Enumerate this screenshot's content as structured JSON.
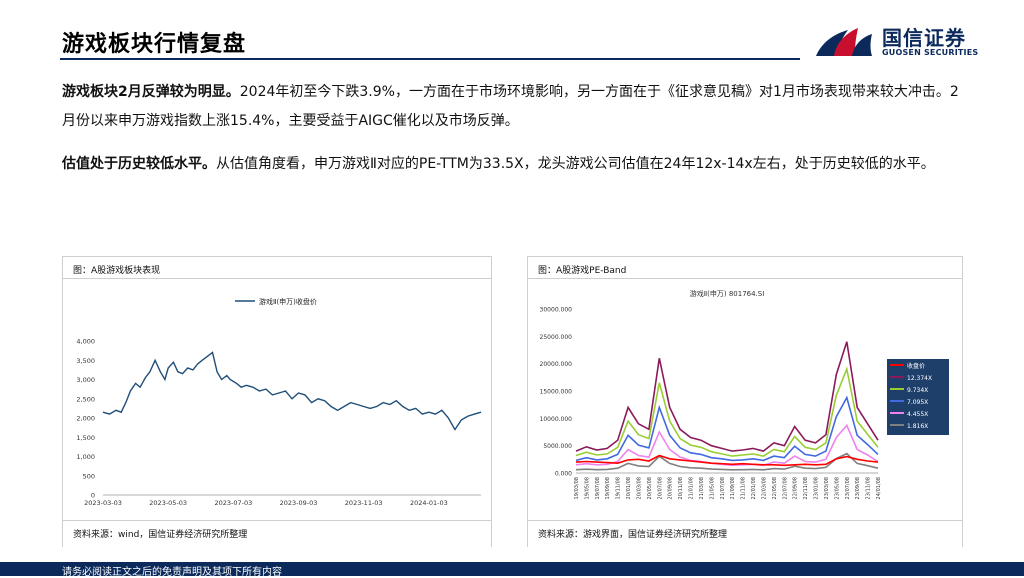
{
  "header": {
    "title": "游戏板块行情复盘",
    "logo_cn": "国信证券",
    "logo_en": "GUOSEN SECURITIES"
  },
  "paragraphs": [
    {
      "lead": "游戏板块2月反弹较为明显。",
      "body": "2024年初至今下跌3.9%，一方面在于市场环境影响，另一方面在于《征求意见稿》对1月市场表现带来较大冲击。2月份以来申万游戏指数上涨15.4%，主要受益于AIGC催化以及市场反弹。"
    },
    {
      "lead": "估值处于历史较低水平。",
      "body": "从估值角度看，申万游戏Ⅱ对应的PE-TTM为33.5X，龙头游戏公司估值在24年12x-14x左右，处于历史较低的水平。"
    }
  ],
  "left_panel": {
    "caption": "图：A股游戏板块表现",
    "source": "资料来源：wind，国信证券经济研究所整理"
  },
  "right_panel": {
    "caption": "图：A股游戏PE-Band",
    "source": "资料来源：游戏界面，国信证券经济研究所整理"
  },
  "footer": {
    "text": "请务必阅读正文之后的免责声明及其项下所有内容"
  },
  "chart_data": [
    {
      "type": "line",
      "legend": "游戏Ⅱ(申万)收盘价",
      "legend_position": "top",
      "x_ticks": [
        "2023-03-03",
        "2023-05-03",
        "2023-07-03",
        "2023-09-03",
        "2023-11-03",
        "2024-01-03"
      ],
      "y_ticks": [
        "0",
        "500",
        "1,000",
        "1,500",
        "2,000",
        "2,500",
        "3,000",
        "3,500",
        "4,000"
      ],
      "ylim": [
        0,
        4000
      ],
      "color": "#1f4e79",
      "series": [
        {
          "name": "游戏Ⅱ(申万)收盘价",
          "x_index": [
            0,
            0.1,
            0.2,
            0.28,
            0.35,
            0.42,
            0.5,
            0.57,
            0.65,
            0.72,
            0.8,
            0.88,
            0.95,
            1.0,
            1.08,
            1.15,
            1.22,
            1.3,
            1.38,
            1.45,
            1.52,
            1.6,
            1.68,
            1.75,
            1.82,
            1.9,
            1.95,
            2.0,
            2.05,
            2.12,
            2.2,
            2.3,
            2.4,
            2.5,
            2.6,
            2.7,
            2.8,
            2.9,
            3.0,
            3.1,
            3.2,
            3.3,
            3.4,
            3.5,
            3.6,
            3.7,
            3.8,
            3.9,
            4.0,
            4.1,
            4.2,
            4.3,
            4.4,
            4.5,
            4.6,
            4.7,
            4.8,
            4.9,
            5.0,
            5.1,
            5.2,
            5.3,
            5.4,
            5.5,
            5.6,
            5.7,
            5.8
          ],
          "values": [
            2150,
            2100,
            2200,
            2150,
            2400,
            2700,
            2900,
            2800,
            3050,
            3200,
            3500,
            3200,
            3000,
            3300,
            3450,
            3200,
            3150,
            3300,
            3250,
            3400,
            3500,
            3600,
            3700,
            3200,
            3000,
            3100,
            3000,
            2950,
            2900,
            2800,
            2850,
            2800,
            2700,
            2750,
            2600,
            2650,
            2700,
            2500,
            2650,
            2600,
            2400,
            2500,
            2450,
            2300,
            2200,
            2300,
            2400,
            2350,
            2300,
            2250,
            2300,
            2400,
            2350,
            2450,
            2300,
            2200,
            2250,
            2100,
            2150,
            2100,
            2200,
            2000,
            1700,
            1950,
            2050,
            2100,
            2150
          ]
        }
      ]
    },
    {
      "type": "line",
      "title": "游戏Ⅱ(申万) 801764.SI",
      "y_ticks": [
        "0.000",
        "5000.000",
        "10000.000",
        "15000.000",
        "20000.000",
        "25000.000",
        "30000.000"
      ],
      "ylim": [
        0,
        30000
      ],
      "legend_position": "right",
      "x_ticks": [
        "19/03/08",
        "19/05/08",
        "19/07/08",
        "19/09/08",
        "19/11/08",
        "20/01/08",
        "20/03/08",
        "20/05/08",
        "20/07/08",
        "20/09/08",
        "20/11/08",
        "21/01/08",
        "21/03/08",
        "21/05/08",
        "21/07/08",
        "21/09/08",
        "21/11/08",
        "22/01/08",
        "22/03/08",
        "22/05/08",
        "22/07/08",
        "22/09/08",
        "22/11/08",
        "23/01/08",
        "23/03/08",
        "23/05/08",
        "23/07/08",
        "23/09/08",
        "23/11/08",
        "24/01/08"
      ],
      "series": [
        {
          "name": "收盘价",
          "color": "#ff0000",
          "values": [
            2000,
            2100,
            2000,
            1900,
            1800,
            2400,
            2500,
            2200,
            3200,
            2600,
            2400,
            2200,
            2000,
            1800,
            1700,
            1600,
            1700,
            1600,
            1500,
            1500,
            1400,
            1500,
            1600,
            1500,
            1600,
            2600,
            3000,
            2500,
            2200,
            2000
          ]
        },
        {
          "name": "12.374X",
          "color": "#8b1a5a",
          "values": [
            4000,
            4800,
            4200,
            4500,
            6000,
            12000,
            9000,
            8000,
            21000,
            12000,
            8000,
            6500,
            6000,
            5000,
            4500,
            4000,
            4200,
            4500,
            4000,
            5500,
            5000,
            8500,
            6000,
            5500,
            7000,
            18000,
            24000,
            12000,
            9000,
            6000
          ]
        },
        {
          "name": "9.734X",
          "color": "#9acd32",
          "values": [
            3200,
            3800,
            3300,
            3500,
            4700,
            9500,
            7000,
            6300,
            16500,
            9500,
            6300,
            5100,
            4700,
            3900,
            3500,
            3100,
            3300,
            3500,
            3100,
            4300,
            3900,
            6700,
            4700,
            4300,
            5500,
            14200,
            19000,
            9500,
            7100,
            4700
          ]
        },
        {
          "name": "7.095X",
          "color": "#4169e1",
          "values": [
            2300,
            2800,
            2400,
            2600,
            3400,
            6900,
            5100,
            4600,
            12000,
            6900,
            4600,
            3700,
            3400,
            2800,
            2600,
            2300,
            2400,
            2600,
            2300,
            3100,
            2800,
            4900,
            3400,
            3100,
            4000,
            10300,
            13800,
            6900,
            5200,
            3400
          ]
        },
        {
          "name": "4.455X",
          "color": "#ee82ee",
          "values": [
            1500,
            1700,
            1500,
            1600,
            2100,
            4300,
            3200,
            2900,
            7500,
            4300,
            2900,
            2300,
            2100,
            1800,
            1600,
            1400,
            1500,
            1600,
            1400,
            2000,
            1800,
            3100,
            2100,
            2000,
            2500,
            6500,
            8700,
            4300,
            3300,
            2100
          ]
        },
        {
          "name": "1.816X",
          "color": "#808080",
          "values": [
            600,
            700,
            600,
            650,
            870,
            1760,
            1300,
            1180,
            3060,
            1760,
            1180,
            950,
            870,
            720,
            650,
            580,
            610,
            650,
            580,
            800,
            720,
            1250,
            870,
            800,
            1020,
            2640,
            3540,
            1760,
            1330,
            870
          ]
        }
      ]
    }
  ]
}
